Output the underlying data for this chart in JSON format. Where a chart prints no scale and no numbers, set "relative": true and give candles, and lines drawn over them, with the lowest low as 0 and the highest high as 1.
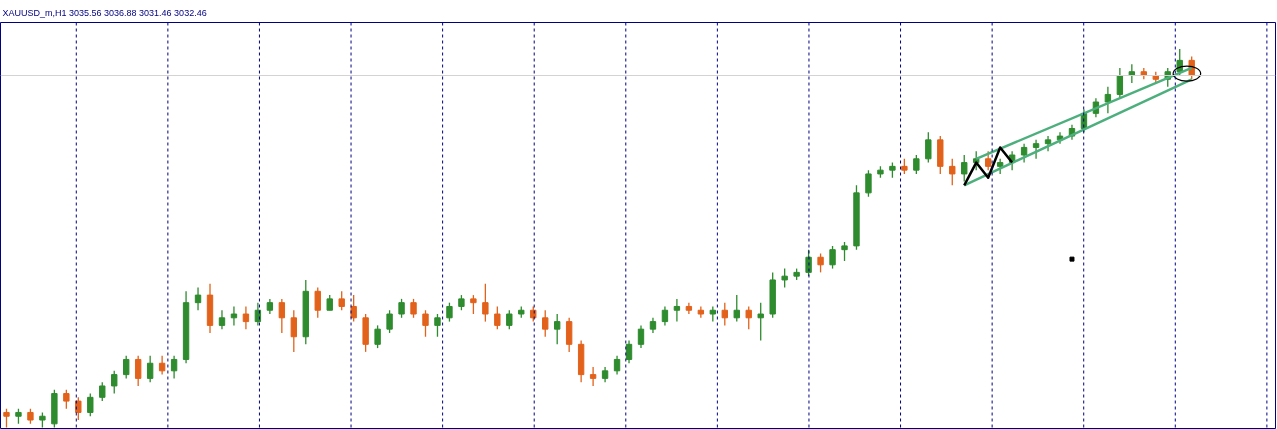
{
  "chart_data": {
    "type": "candlestick",
    "title": "XAUUSD_m,H1 3035.56 3036.88 3031.46 3032.46",
    "relative": true,
    "grid": "x",
    "ref_lines": [
      {
        "axis": "y",
        "value": 0.93,
        "color": "#d3d3d3"
      }
    ],
    "categories": [
      null,
      null,
      null,
      null,
      null,
      null,
      null,
      null,
      null,
      null,
      null,
      null,
      null,
      null,
      null,
      null,
      null,
      null,
      null,
      null,
      null,
      null,
      null,
      null,
      null,
      null,
      null,
      null,
      null,
      null,
      null,
      null,
      null,
      null,
      null,
      null,
      null,
      null,
      null,
      null,
      null,
      null,
      null,
      null,
      null,
      null,
      null,
      null,
      null,
      null,
      null,
      null,
      null,
      null,
      null,
      null,
      null,
      null,
      null,
      null,
      null,
      null,
      null,
      null,
      null,
      null,
      null,
      null,
      null,
      null,
      null,
      null,
      null,
      null,
      null,
      null,
      null,
      null,
      null,
      null,
      null,
      null,
      null,
      null,
      null,
      null,
      null,
      null,
      null,
      null,
      null,
      null,
      null,
      null,
      null,
      null,
      null,
      null,
      null,
      null
    ],
    "ohlc": [
      [
        0.04,
        0.05,
        0.0,
        0.03
      ],
      [
        0.03,
        0.05,
        0.01,
        0.04
      ],
      [
        0.04,
        0.05,
        0.01,
        0.02
      ],
      [
        0.02,
        0.04,
        0.0,
        0.03
      ],
      [
        0.01,
        0.1,
        0.0,
        0.09
      ],
      [
        0.09,
        0.1,
        0.05,
        0.07
      ],
      [
        0.07,
        0.08,
        0.02,
        0.04
      ],
      [
        0.04,
        0.09,
        0.03,
        0.08
      ],
      [
        0.08,
        0.12,
        0.07,
        0.11
      ],
      [
        0.11,
        0.15,
        0.09,
        0.14
      ],
      [
        0.14,
        0.19,
        0.13,
        0.18
      ],
      [
        0.18,
        0.19,
        0.11,
        0.13
      ],
      [
        0.13,
        0.19,
        0.12,
        0.17
      ],
      [
        0.17,
        0.19,
        0.14,
        0.15
      ],
      [
        0.15,
        0.19,
        0.13,
        0.18
      ],
      [
        0.18,
        0.36,
        0.17,
        0.33
      ],
      [
        0.33,
        0.37,
        0.31,
        0.35
      ],
      [
        0.35,
        0.38,
        0.25,
        0.27
      ],
      [
        0.27,
        0.31,
        0.26,
        0.29
      ],
      [
        0.29,
        0.32,
        0.27,
        0.3
      ],
      [
        0.3,
        0.32,
        0.26,
        0.28
      ],
      [
        0.28,
        0.33,
        0.27,
        0.31
      ],
      [
        0.31,
        0.34,
        0.3,
        0.33
      ],
      [
        0.33,
        0.34,
        0.25,
        0.29
      ],
      [
        0.29,
        0.31,
        0.2,
        0.24
      ],
      [
        0.24,
        0.39,
        0.22,
        0.36
      ],
      [
        0.36,
        0.37,
        0.29,
        0.31
      ],
      [
        0.31,
        0.35,
        0.31,
        0.34
      ],
      [
        0.34,
        0.36,
        0.31,
        0.32
      ],
      [
        0.32,
        0.35,
        0.28,
        0.29
      ],
      [
        0.29,
        0.3,
        0.2,
        0.22
      ],
      [
        0.22,
        0.27,
        0.21,
        0.26
      ],
      [
        0.26,
        0.31,
        0.25,
        0.3
      ],
      [
        0.3,
        0.34,
        0.29,
        0.33
      ],
      [
        0.33,
        0.34,
        0.29,
        0.3
      ],
      [
        0.3,
        0.31,
        0.24,
        0.27
      ],
      [
        0.27,
        0.3,
        0.24,
        0.29
      ],
      [
        0.29,
        0.33,
        0.28,
        0.32
      ],
      [
        0.32,
        0.35,
        0.31,
        0.34
      ],
      [
        0.34,
        0.35,
        0.3,
        0.33
      ],
      [
        0.33,
        0.38,
        0.28,
        0.3
      ],
      [
        0.3,
        0.32,
        0.26,
        0.27
      ],
      [
        0.27,
        0.31,
        0.26,
        0.3
      ],
      [
        0.3,
        0.32,
        0.29,
        0.31
      ],
      [
        0.31,
        0.32,
        0.28,
        0.29
      ],
      [
        0.29,
        0.31,
        0.24,
        0.26
      ],
      [
        0.26,
        0.3,
        0.22,
        0.28
      ],
      [
        0.28,
        0.29,
        0.2,
        0.22
      ],
      [
        0.22,
        0.23,
        0.12,
        0.14
      ],
      [
        0.14,
        0.16,
        0.11,
        0.13
      ],
      [
        0.13,
        0.16,
        0.12,
        0.15
      ],
      [
        0.15,
        0.19,
        0.14,
        0.18
      ],
      [
        0.18,
        0.23,
        0.17,
        0.22
      ],
      [
        0.22,
        0.27,
        0.21,
        0.26
      ],
      [
        0.26,
        0.29,
        0.25,
        0.28
      ],
      [
        0.28,
        0.32,
        0.27,
        0.31
      ],
      [
        0.31,
        0.34,
        0.28,
        0.32
      ],
      [
        0.32,
        0.33,
        0.3,
        0.31
      ],
      [
        0.31,
        0.32,
        0.29,
        0.3
      ],
      [
        0.3,
        0.32,
        0.28,
        0.31
      ],
      [
        0.31,
        0.33,
        0.27,
        0.29
      ],
      [
        0.29,
        0.35,
        0.28,
        0.31
      ],
      [
        0.31,
        0.32,
        0.26,
        0.29
      ],
      [
        0.29,
        0.33,
        0.23,
        0.3
      ],
      [
        0.3,
        0.41,
        0.29,
        0.39
      ],
      [
        0.39,
        0.42,
        0.37,
        0.4
      ],
      [
        0.4,
        0.42,
        0.39,
        0.41
      ],
      [
        0.41,
        0.47,
        0.4,
        0.45
      ],
      [
        0.45,
        0.46,
        0.41,
        0.43
      ],
      [
        0.43,
        0.48,
        0.42,
        0.47
      ],
      [
        0.47,
        0.49,
        0.44,
        0.48
      ],
      [
        0.48,
        0.64,
        0.47,
        0.62
      ],
      [
        0.62,
        0.68,
        0.61,
        0.67
      ],
      [
        0.67,
        0.69,
        0.66,
        0.68
      ],
      [
        0.68,
        0.7,
        0.66,
        0.69
      ],
      [
        0.69,
        0.71,
        0.67,
        0.68
      ],
      [
        0.68,
        0.72,
        0.67,
        0.71
      ],
      [
        0.71,
        0.78,
        0.7,
        0.76
      ],
      [
        0.76,
        0.77,
        0.67,
        0.69
      ],
      [
        0.69,
        0.71,
        0.64,
        0.67
      ],
      [
        0.67,
        0.72,
        0.65,
        0.7
      ],
      [
        0.7,
        0.73,
        0.68,
        0.71
      ],
      [
        0.71,
        0.73,
        0.68,
        0.69
      ],
      [
        0.69,
        0.71,
        0.67,
        0.7
      ],
      [
        0.7,
        0.73,
        0.68,
        0.72
      ],
      [
        0.72,
        0.75,
        0.7,
        0.74
      ],
      [
        0.74,
        0.76,
        0.71,
        0.75
      ],
      [
        0.75,
        0.77,
        0.73,
        0.76
      ],
      [
        0.76,
        0.78,
        0.75,
        0.77
      ],
      [
        0.77,
        0.8,
        0.76,
        0.79
      ],
      [
        0.79,
        0.84,
        0.78,
        0.83
      ],
      [
        0.83,
        0.87,
        0.82,
        0.86
      ],
      [
        0.86,
        0.9,
        0.83,
        0.88
      ],
      [
        0.88,
        0.95,
        0.87,
        0.93
      ],
      [
        0.93,
        0.96,
        0.91,
        0.94
      ],
      [
        0.94,
        0.95,
        0.92,
        0.93
      ],
      [
        0.93,
        0.94,
        0.91,
        0.92
      ],
      [
        0.92,
        0.95,
        0.9,
        0.94
      ],
      [
        0.94,
        1.0,
        0.93,
        0.97
      ],
      [
        0.97,
        0.98,
        0.92,
        0.93
      ]
    ],
    "colors": [
      "#e2621b",
      "#2e8b2e",
      "#e2621b",
      "#2e8b2e",
      "#2e8b2e",
      "#e2621b",
      "#e2621b",
      "#2e8b2e",
      "#2e8b2e",
      "#2e8b2e",
      "#2e8b2e",
      "#e2621b",
      "#2e8b2e",
      "#e2621b",
      "#2e8b2e",
      "#2e8b2e",
      "#2e8b2e",
      "#e2621b",
      "#2e8b2e",
      "#2e8b2e",
      "#e2621b",
      "#2e8b2e",
      "#2e8b2e",
      "#e2621b",
      "#e2621b",
      "#2e8b2e",
      "#e2621b",
      "#2e8b2e",
      "#e2621b",
      "#e2621b",
      "#e2621b",
      "#2e8b2e",
      "#2e8b2e",
      "#2e8b2e",
      "#e2621b",
      "#e2621b",
      "#2e8b2e",
      "#2e8b2e",
      "#2e8b2e",
      "#e2621b",
      "#e2621b",
      "#e2621b",
      "#2e8b2e",
      "#2e8b2e",
      "#e2621b",
      "#e2621b",
      "#2e8b2e",
      "#e2621b",
      "#e2621b",
      "#e2621b",
      "#2e8b2e",
      "#2e8b2e",
      "#2e8b2e",
      "#2e8b2e",
      "#2e8b2e",
      "#2e8b2e",
      "#2e8b2e",
      "#e2621b",
      "#e2621b",
      "#2e8b2e",
      "#e2621b",
      "#2e8b2e",
      "#e2621b",
      "#2e8b2e",
      "#2e8b2e",
      "#2e8b2e",
      "#2e8b2e",
      "#2e8b2e",
      "#e2621b",
      "#2e8b2e",
      "#2e8b2e",
      "#2e8b2e",
      "#2e8b2e",
      "#2e8b2e",
      "#2e8b2e",
      "#e2621b",
      "#2e8b2e",
      "#2e8b2e",
      "#e2621b",
      "#e2621b",
      "#2e8b2e",
      "#2e8b2e",
      "#e2621b",
      "#2e8b2e",
      "#2e8b2e",
      "#2e8b2e",
      "#2e8b2e",
      "#2e8b2e",
      "#2e8b2e",
      "#2e8b2e",
      "#2e8b2e",
      "#2e8b2e",
      "#2e8b2e",
      "#2e8b2e",
      "#2e8b2e",
      "#e2621b",
      "#e2621b",
      "#2e8b2e",
      "#2e8b2e",
      "#e2621b"
    ],
    "series": [
      {
        "type": "line",
        "color": "#4caf7d",
        "values": [
          null,
          null,
          null,
          null,
          null,
          null,
          null,
          null,
          null,
          null,
          null,
          null,
          null,
          null,
          null,
          null,
          null,
          null,
          null,
          null,
          null,
          null,
          null,
          null,
          null,
          null,
          null,
          null,
          null,
          null,
          null,
          null,
          null,
          null,
          null,
          null,
          null,
          null,
          null,
          null,
          null,
          null,
          null,
          null,
          null,
          null,
          null,
          null,
          null,
          null,
          null,
          null,
          null,
          null,
          null,
          null,
          null,
          null,
          null,
          null,
          null,
          null,
          null,
          null,
          null,
          null,
          null,
          null,
          null,
          null,
          null,
          null,
          null,
          null,
          null,
          null,
          null,
          null,
          null,
          null,
          null,
          0.71,
          null,
          null,
          null,
          null,
          null,
          null,
          null,
          null,
          null,
          null,
          null,
          null,
          null,
          null,
          null,
          null,
          null,
          0.95
        ]
      },
      {
        "type": "line",
        "color": "#4caf7d",
        "values": [
          null,
          null,
          null,
          null,
          null,
          null,
          null,
          null,
          null,
          null,
          null,
          null,
          null,
          null,
          null,
          null,
          null,
          null,
          null,
          null,
          null,
          null,
          null,
          null,
          null,
          null,
          null,
          null,
          null,
          null,
          null,
          null,
          null,
          null,
          null,
          null,
          null,
          null,
          null,
          null,
          null,
          null,
          null,
          null,
          null,
          null,
          null,
          null,
          null,
          null,
          null,
          null,
          null,
          null,
          null,
          null,
          null,
          null,
          null,
          null,
          null,
          null,
          null,
          null,
          null,
          null,
          null,
          null,
          null,
          null,
          null,
          null,
          null,
          null,
          null,
          null,
          null,
          null,
          null,
          null,
          0.64,
          null,
          null,
          null,
          null,
          null,
          null,
          null,
          null,
          null,
          null,
          null,
          null,
          null,
          null,
          null,
          null,
          null,
          null,
          0.92
        ]
      },
      {
        "type": "line",
        "color": "#000000",
        "values": [
          null,
          null,
          null,
          null,
          null,
          null,
          null,
          null,
          null,
          null,
          null,
          null,
          null,
          null,
          null,
          null,
          null,
          null,
          null,
          null,
          null,
          null,
          null,
          null,
          null,
          null,
          null,
          null,
          null,
          null,
          null,
          null,
          null,
          null,
          null,
          null,
          null,
          null,
          null,
          null,
          null,
          null,
          null,
          null,
          null,
          null,
          null,
          null,
          null,
          null,
          null,
          null,
          null,
          null,
          null,
          null,
          null,
          null,
          null,
          null,
          null,
          null,
          null,
          null,
          null,
          null,
          null,
          null,
          null,
          null,
          null,
          null,
          null,
          null,
          null,
          null,
          null,
          null,
          null,
          null,
          0.64,
          0.7,
          0.66,
          0.74,
          0.7,
          null,
          null,
          null,
          null,
          null,
          null,
          null,
          null,
          null,
          null,
          null,
          null,
          null,
          null,
          null
        ]
      },
      {
        "type": "scatter",
        "color": "#000000",
        "marker": "square",
        "values": [
          null,
          null,
          null,
          null,
          null,
          null,
          null,
          null,
          null,
          null,
          null,
          null,
          null,
          null,
          null,
          null,
          null,
          null,
          null,
          null,
          null,
          null,
          null,
          null,
          null,
          null,
          null,
          null,
          null,
          null,
          null,
          null,
          null,
          null,
          null,
          null,
          null,
          null,
          null,
          null,
          null,
          null,
          null,
          null,
          null,
          null,
          null,
          null,
          null,
          null,
          null,
          null,
          null,
          null,
          null,
          null,
          null,
          null,
          null,
          null,
          null,
          null,
          null,
          null,
          null,
          null,
          null,
          null,
          null,
          null,
          null,
          null,
          null,
          null,
          null,
          null,
          null,
          null,
          null,
          null,
          null,
          null,
          null,
          null,
          null,
          null,
          null,
          null,
          null,
          0.445,
          null,
          null,
          null,
          null,
          null,
          null,
          null,
          null,
          null,
          null
        ]
      }
    ]
  }
}
